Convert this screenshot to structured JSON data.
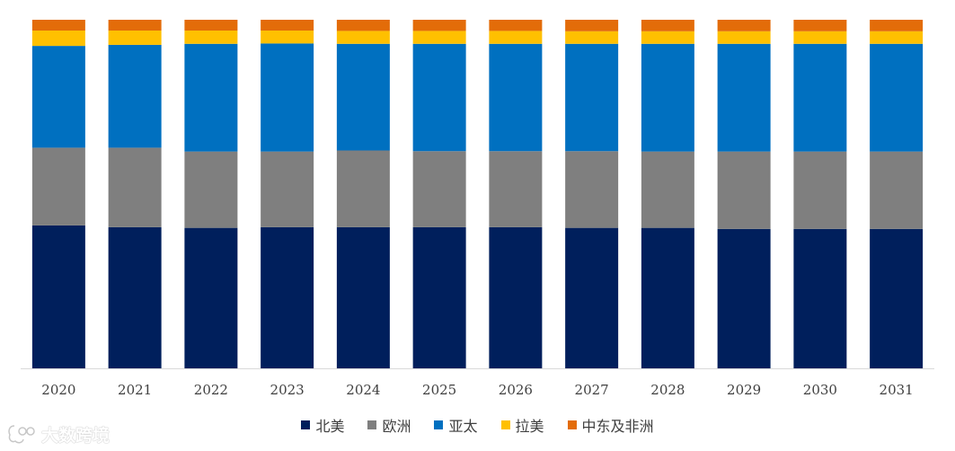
{
  "chart_data": {
    "type": "bar",
    "stacked": true,
    "normalized_percent": true,
    "categories": [
      "2020",
      "2021",
      "2022",
      "2023",
      "2024",
      "2025",
      "2026",
      "2027",
      "2028",
      "2029",
      "2030",
      "2031"
    ],
    "series": [
      {
        "name": "北美",
        "color": "#001F5C",
        "values": [
          41.0,
          40.5,
          40.3,
          40.5,
          40.5,
          40.5,
          40.5,
          40.3,
          40.3,
          40.0,
          40.0,
          40.0
        ]
      },
      {
        "name": "欧洲",
        "color": "#7F7F7F",
        "values": [
          22.3,
          22.8,
          21.9,
          21.7,
          22.0,
          21.8,
          21.8,
          22.0,
          21.9,
          22.2,
          22.2,
          22.2
        ]
      },
      {
        "name": "亚太",
        "color": "#0070C0",
        "values": [
          29.2,
          29.5,
          30.9,
          31.0,
          30.6,
          30.8,
          30.8,
          30.8,
          30.9,
          30.9,
          30.9,
          30.9
        ]
      },
      {
        "name": "拉美",
        "color": "#FFC000",
        "values": [
          4.4,
          4.1,
          3.8,
          3.7,
          3.7,
          3.7,
          3.7,
          3.6,
          3.6,
          3.6,
          3.6,
          3.6
        ]
      },
      {
        "name": "中东及非洲",
        "color": "#E36C09",
        "values": [
          3.1,
          3.1,
          3.1,
          3.1,
          3.2,
          3.2,
          3.2,
          3.3,
          3.3,
          3.3,
          3.3,
          3.3
        ]
      }
    ],
    "ylim": [
      0,
      100
    ],
    "grid": false,
    "legend_position": "bottom",
    "title": "",
    "xlabel": "",
    "ylabel": ""
  },
  "watermark": {
    "text": "大数跨境",
    "icon": "watermark-logo-icon"
  }
}
